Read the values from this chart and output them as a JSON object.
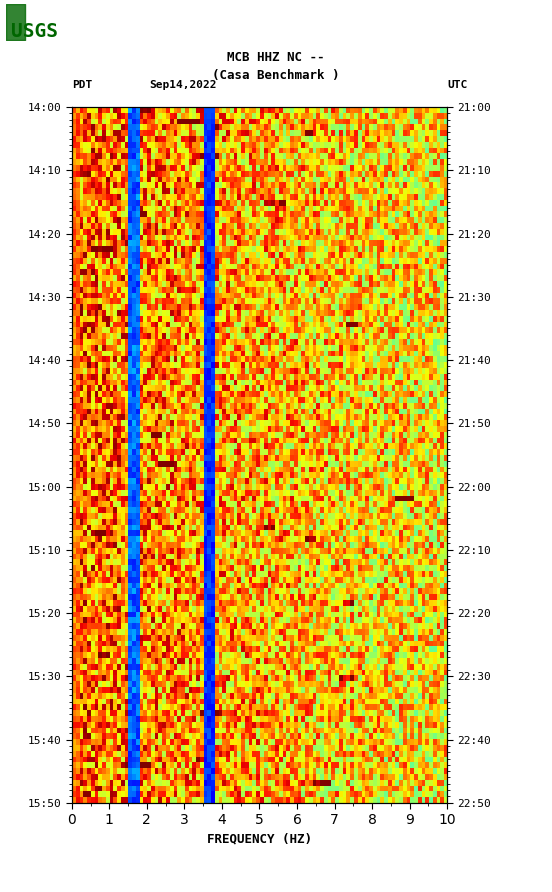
{
  "title_line1": "MCB HHZ NC --",
  "title_line2": "(Casa Benchmark )",
  "left_label": "PDT",
  "date_label": "Sep14,2022",
  "right_label": "UTC",
  "xlabel": "FREQUENCY (HZ)",
  "freq_min": 0,
  "freq_max": 10,
  "time_start_pdt": "14:00",
  "time_end_pdt": "15:50",
  "time_start_utc": "21:00",
  "time_end_utc": "22:50",
  "pdt_ticks": [
    "14:00",
    "14:10",
    "14:20",
    "14:30",
    "14:40",
    "14:50",
    "15:00",
    "15:10",
    "15:20",
    "15:30",
    "15:40",
    "15:50"
  ],
  "utc_ticks": [
    "21:00",
    "21:10",
    "21:20",
    "21:30",
    "21:40",
    "21:50",
    "22:00",
    "22:10",
    "22:20",
    "22:30",
    "22:40",
    "22:50"
  ],
  "background_color": "#ffffff",
  "spectrogram_cmap": "jet",
  "blue_strip_color": "#0000aa",
  "fig_width": 5.52,
  "fig_height": 8.92,
  "dpi": 100
}
